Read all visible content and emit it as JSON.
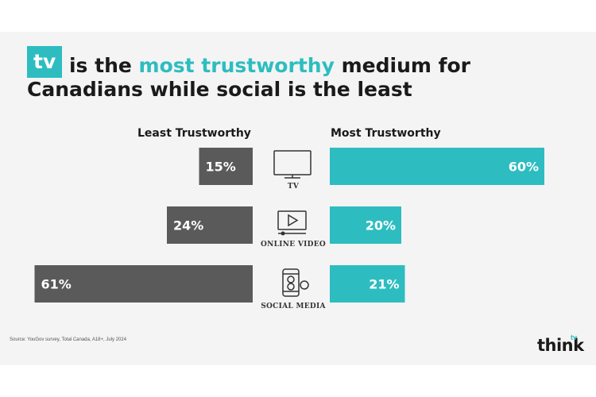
{
  "header": {
    "badge": "tv",
    "title_mid": "is the",
    "title_highlight": "most trustworthy",
    "title_end": "medium for",
    "title_line2": "Canadians while social is the least"
  },
  "colors": {
    "accent": "#2dbdc0",
    "dark": "#5a5a5a"
  },
  "footer": {
    "source": "Source: YouGov survey, Total Canada, A18+, July 2024",
    "logo_text": "think",
    "logo_sup": "tv"
  },
  "chart_data": {
    "type": "bar",
    "orientation": "horizontal-diverging",
    "categories": [
      "TV",
      "ONLINE VIDEO",
      "SOCIAL MEDIA"
    ],
    "category_icons": [
      "tv-icon",
      "online-video-icon",
      "social-media-icon"
    ],
    "series": [
      {
        "name": "Least Trustworthy",
        "values": [
          15,
          24,
          61
        ],
        "labels": [
          "15%",
          "24%",
          "61%"
        ],
        "color": "#5a5a5a"
      },
      {
        "name": "Most Trustworthy",
        "values": [
          60,
          20,
          21
        ],
        "labels": [
          "60%",
          "20%",
          "21%"
        ],
        "color": "#2dbdc0"
      }
    ],
    "unit": "%"
  }
}
